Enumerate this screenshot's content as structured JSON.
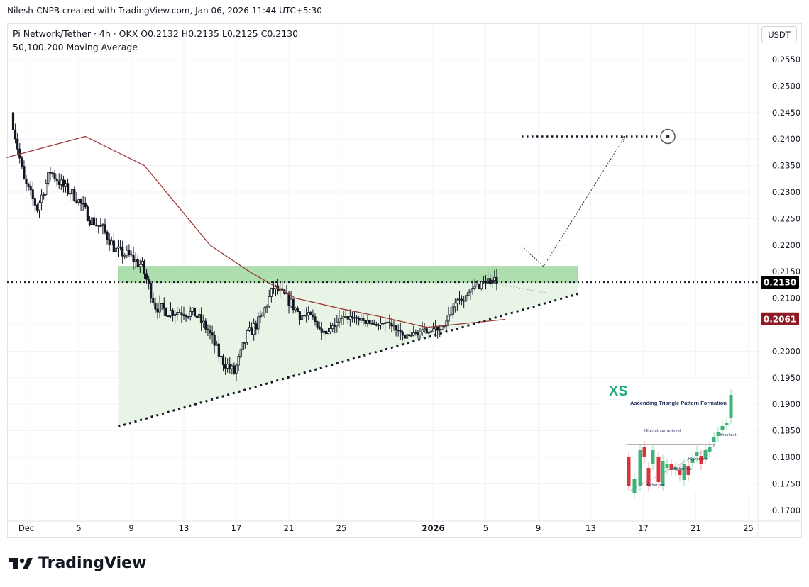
{
  "credit": "Nilesh-CNPB created with TradingView.com, Jan 06, 2026 11:44 UTC+5:30",
  "legend": {
    "symbol_line": "Pi Network/Tether · 4h · OKX  O0.2132  H0.2135  L0.2125  C0.2130",
    "indicator": "50,100,200 Moving Average"
  },
  "currency_button": "USDT",
  "brand": "TradingView",
  "colors": {
    "up": "#131722",
    "ma": "#9c3a3a",
    "zone": "#8fd18f",
    "triangle_fill": "#e8f5e6",
    "price_label": "#000000",
    "ma_label": "#8e1b24"
  },
  "chart_data": {
    "type": "candlestick",
    "title": "Pi Network/Tether · 4h · OKX",
    "ylim": [
      0.1675,
      0.2575
    ],
    "y_ticks": [
      "0.2550",
      "0.2500",
      "0.2450",
      "0.2400",
      "0.2350",
      "0.2300",
      "0.2250",
      "0.2200",
      "0.2150",
      "0.2100",
      "0.2050",
      "0.2000",
      "0.1950",
      "0.1900",
      "0.1850",
      "0.1800",
      "0.1750",
      "0.1700"
    ],
    "x_ticks": [
      {
        "label": "Dec",
        "day": 0
      },
      {
        "label": "5",
        "day": 4
      },
      {
        "label": "9",
        "day": 8
      },
      {
        "label": "13",
        "day": 12
      },
      {
        "label": "17",
        "day": 16
      },
      {
        "label": "21",
        "day": 20
      },
      {
        "label": "25",
        "day": 24
      },
      {
        "label": "2026",
        "day": 31
      },
      {
        "label": "5",
        "day": 35
      },
      {
        "label": "9",
        "day": 39
      },
      {
        "label": "13",
        "day": 43
      },
      {
        "label": "17",
        "day": 47
      },
      {
        "label": "21",
        "day": 51
      },
      {
        "label": "25",
        "day": 55
      }
    ],
    "approx_daily_close": [
      [
        "Nov 30",
        0.245
      ],
      [
        "Dec 1",
        0.232
      ],
      [
        "Dec 2",
        0.227
      ],
      [
        "Dec 3",
        0.234
      ],
      [
        "Dec 4",
        0.231
      ],
      [
        "Dec 5",
        0.229
      ],
      [
        "Dec 6",
        0.225
      ],
      [
        "Dec 7",
        0.223
      ],
      [
        "Dec 8",
        0.219
      ],
      [
        "Dec 9",
        0.218
      ],
      [
        "Dec 10",
        0.216
      ],
      [
        "Dec 11",
        0.2085
      ],
      [
        "Dec 12",
        0.2075
      ],
      [
        "Dec 13",
        0.2075
      ],
      [
        "Dec 14",
        0.207
      ],
      [
        "Dec 15",
        0.204
      ],
      [
        "Dec 16",
        0.1985
      ],
      [
        "Dec 17",
        0.196
      ],
      [
        "Dec 18",
        0.203
      ],
      [
        "Dec 19",
        0.206
      ],
      [
        "Dec 20",
        0.212
      ],
      [
        "Dec 21",
        0.21
      ],
      [
        "Dec 22",
        0.207
      ],
      [
        "Dec 23",
        0.206
      ],
      [
        "Dec 24",
        0.203
      ],
      [
        "Dec 25",
        0.206
      ],
      [
        "Dec 26",
        0.2065
      ],
      [
        "Dec 27",
        0.2055
      ],
      [
        "Dec 28",
        0.205
      ],
      [
        "Dec 29",
        0.205
      ],
      [
        "Dec 30",
        0.2025
      ],
      [
        "Dec 31",
        0.2035
      ],
      [
        "Jan 1",
        0.204
      ],
      [
        "Jan 2",
        0.2045
      ],
      [
        "Jan 3",
        0.21
      ],
      [
        "Jan 4",
        0.211
      ],
      [
        "Jan 5",
        0.2135
      ],
      [
        "Jan 6",
        0.213
      ]
    ],
    "moving_average": [
      [
        -1.5,
        0.2365
      ],
      [
        4.5,
        0.2405
      ],
      [
        9,
        0.235
      ],
      [
        14,
        0.22
      ],
      [
        17,
        0.215
      ],
      [
        20.5,
        0.21
      ],
      [
        24,
        0.208
      ],
      [
        27,
        0.2065
      ],
      [
        30.5,
        0.2045
      ],
      [
        32.5,
        0.205
      ],
      [
        36.5,
        0.206
      ]
    ],
    "last_price": "0.2130",
    "ma_value": "0.2061",
    "resistance_zone": [
      0.213,
      0.216
    ],
    "support_trendline": [
      [
        7,
        0.1858
      ],
      [
        42,
        0.2108
      ]
    ],
    "target": 0.2405,
    "projection_path": [
      [
        37.9,
        0.2195
      ],
      [
        39.4,
        0.216
      ],
      [
        45.6,
        0.2405
      ]
    ]
  },
  "inset": {
    "logo": "XS",
    "title": "Ascending Triangle Pattern Formation",
    "labels": [
      "High at same level",
      "Breakout",
      "Higher low",
      "Higher low",
      "Higher low"
    ]
  }
}
